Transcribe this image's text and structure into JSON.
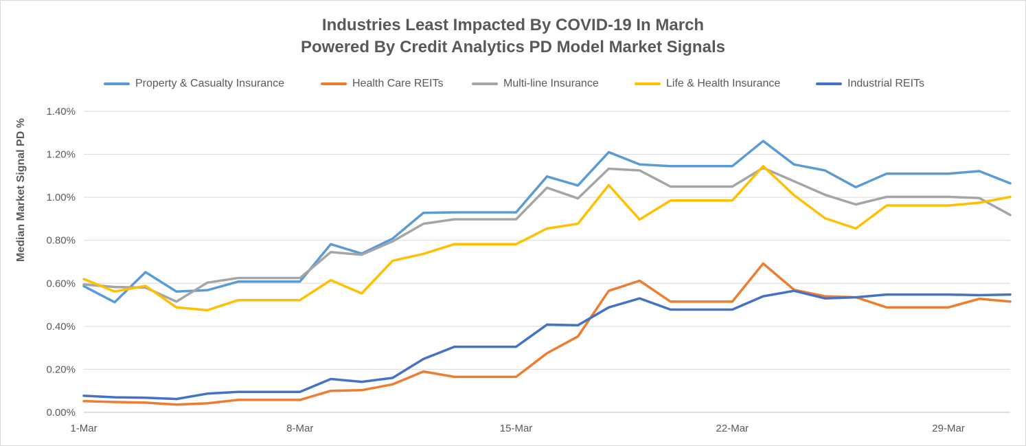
{
  "chart_data": {
    "type": "line",
    "title_line1": "Industries Least Impacted By COVID-19 In March",
    "title_line2": "Powered By Credit Analytics PD Model Market Signals",
    "xlabel": "",
    "ylabel": "Median Market Signal PD %",
    "ylim": [
      0,
      1.4
    ],
    "yticks": [
      0,
      0.2,
      0.4,
      0.6,
      0.8,
      1.0,
      1.2,
      1.4
    ],
    "ytick_labels": [
      "0.00%",
      "0.20%",
      "0.40%",
      "0.60%",
      "0.80%",
      "1.00%",
      "1.20%",
      "1.40%"
    ],
    "x": [
      1,
      2,
      3,
      4,
      5,
      6,
      7,
      8,
      9,
      10,
      11,
      12,
      13,
      14,
      15,
      16,
      17,
      18,
      19,
      20,
      21,
      22,
      23,
      24,
      25,
      26,
      27,
      28,
      29,
      30,
      31
    ],
    "xticks": [
      1,
      8,
      15,
      22,
      29
    ],
    "xtick_labels": [
      "1-Mar",
      "8-Mar",
      "15-Mar",
      "22-Mar",
      "29-Mar"
    ],
    "grid": true,
    "legend_position": "top",
    "series": [
      {
        "name": "Property & Casualty Insurance",
        "color": "#5B9BD5",
        "values": [
          0.587,
          0.512,
          0.652,
          0.562,
          0.568,
          0.608,
          0.608,
          0.608,
          0.782,
          0.738,
          0.808,
          0.928,
          0.93,
          0.93,
          0.93,
          1.097,
          1.055,
          1.21,
          1.153,
          1.145,
          1.145,
          1.145,
          1.262,
          1.153,
          1.125,
          1.047,
          1.11,
          1.11,
          1.11,
          1.122,
          1.065
        ]
      },
      {
        "name": "Health Care REITs",
        "color": "#ED7D31",
        "values": [
          0.052,
          0.048,
          0.045,
          0.036,
          0.042,
          0.058,
          0.058,
          0.058,
          0.1,
          0.103,
          0.13,
          0.19,
          0.165,
          0.165,
          0.165,
          0.275,
          0.353,
          0.565,
          0.612,
          0.515,
          0.515,
          0.515,
          0.692,
          0.57,
          0.54,
          0.535,
          0.488,
          0.488,
          0.488,
          0.528,
          0.515
        ]
      },
      {
        "name": "Multi-line Insurance",
        "color": "#A5A5A5",
        "values": [
          0.595,
          0.583,
          0.58,
          0.515,
          0.603,
          0.625,
          0.625,
          0.625,
          0.745,
          0.733,
          0.795,
          0.877,
          0.898,
          0.898,
          0.898,
          1.045,
          0.995,
          1.133,
          1.125,
          1.05,
          1.05,
          1.05,
          1.137,
          1.075,
          1.012,
          0.967,
          1.002,
          1.002,
          1.002,
          0.997,
          0.918
        ]
      },
      {
        "name": "Life & Health Insurance",
        "color": "#FFC000",
        "values": [
          0.62,
          0.562,
          0.588,
          0.488,
          0.475,
          0.522,
          0.522,
          0.522,
          0.615,
          0.553,
          0.705,
          0.737,
          0.782,
          0.782,
          0.782,
          0.855,
          0.877,
          1.057,
          0.897,
          0.985,
          0.985,
          0.985,
          1.145,
          1.01,
          0.903,
          0.855,
          0.962,
          0.962,
          0.962,
          0.975,
          1.002
        ]
      },
      {
        "name": "Industrial REITs",
        "color": "#4472C4",
        "values": [
          0.077,
          0.07,
          0.068,
          0.062,
          0.087,
          0.095,
          0.095,
          0.095,
          0.155,
          0.142,
          0.16,
          0.248,
          0.305,
          0.305,
          0.305,
          0.408,
          0.405,
          0.488,
          0.53,
          0.478,
          0.478,
          0.478,
          0.54,
          0.565,
          0.53,
          0.535,
          0.548,
          0.548,
          0.548,
          0.545,
          0.548
        ]
      }
    ]
  }
}
